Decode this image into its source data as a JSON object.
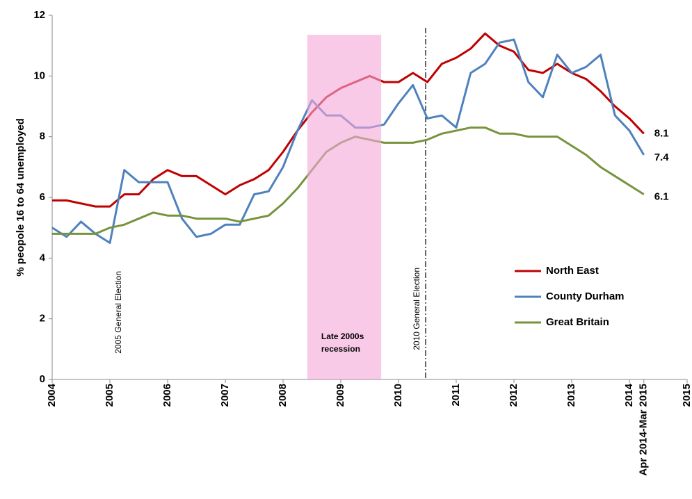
{
  "chart_data": {
    "type": "line",
    "y_label": "% peopole 16 to 64 unemployed",
    "xlim": [
      2004,
      2015
    ],
    "xticks": [
      2004,
      2005,
      2006,
      2007,
      2008,
      2009,
      2010,
      2011,
      2012,
      2013,
      2014,
      {
        "value": 2014.25,
        "label": "Apr 2014-Mar 2015"
      },
      2015
    ],
    "ylim": [
      0,
      12
    ],
    "yticks": [
      0,
      2,
      4,
      6,
      8,
      10,
      12
    ],
    "x": [
      2004,
      2004.25,
      2004.5,
      2004.75,
      2005,
      2005.25,
      2005.5,
      2005.75,
      2006,
      2006.25,
      2006.5,
      2006.75,
      2007,
      2007.25,
      2007.5,
      2007.75,
      2008,
      2008.25,
      2008.5,
      2008.75,
      2009,
      2009.25,
      2009.5,
      2009.75,
      2010,
      2010.25,
      2010.5,
      2010.75,
      2011,
      2011.25,
      2011.5,
      2011.75,
      2012,
      2012.25,
      2012.5,
      2012.75,
      2013,
      2013.25,
      2013.5,
      2013.75,
      2014,
      2014.25
    ],
    "series": [
      {
        "name": "North East",
        "color": "#c00000",
        "values": [
          5.9,
          5.9,
          5.8,
          5.7,
          5.7,
          6.1,
          6.1,
          6.6,
          6.9,
          6.7,
          6.7,
          6.4,
          6.1,
          6.4,
          6.6,
          6.9,
          7.5,
          8.2,
          8.8,
          9.3,
          9.6,
          9.8,
          10.0,
          9.8,
          9.8,
          10.1,
          9.8,
          10.4,
          10.6,
          10.9,
          11.4,
          11.0,
          10.8,
          10.2,
          10.1,
          10.4,
          10.1,
          9.9,
          9.5,
          9.0,
          8.6,
          8.1
        ]
      },
      {
        "name": "County Durham",
        "color": "#4f81bd",
        "values": [
          5.0,
          4.7,
          5.2,
          4.8,
          4.5,
          6.9,
          6.5,
          6.5,
          6.5,
          5.3,
          4.7,
          4.8,
          5.1,
          5.1,
          6.1,
          6.2,
          7.0,
          8.2,
          9.2,
          8.7,
          8.7,
          8.3,
          8.3,
          8.4,
          9.1,
          9.7,
          8.6,
          8.7,
          8.3,
          10.1,
          10.4,
          11.1,
          11.2,
          9.8,
          9.3,
          10.7,
          10.1,
          10.3,
          10.7,
          8.7,
          8.2,
          7.4
        ]
      },
      {
        "name": "Great Britain",
        "color": "#77933c",
        "values": [
          4.8,
          4.8,
          4.8,
          4.8,
          5.0,
          5.1,
          5.3,
          5.5,
          5.4,
          5.4,
          5.3,
          5.3,
          5.3,
          5.2,
          5.3,
          5.4,
          5.8,
          6.3,
          6.9,
          7.5,
          7.8,
          8.0,
          7.9,
          7.8,
          7.8,
          7.8,
          7.9,
          8.1,
          8.2,
          8.3,
          8.3,
          8.1,
          8.1,
          8.0,
          8.0,
          8.0,
          7.7,
          7.4,
          7.0,
          6.7,
          6.4,
          6.1
        ]
      }
    ],
    "end_labels": true,
    "shaded_period": {
      "label_lines": [
        "Late 2000s",
        "recession"
      ],
      "x": [
        2008.42,
        2009.7
      ],
      "color": "#f4a6d7"
    },
    "events": [
      {
        "label": "2005 General Election",
        "x": 2005.3,
        "line": false
      },
      {
        "label": "2010 General Election",
        "x": 2010.47,
        "line": true
      }
    ],
    "legend": "right"
  }
}
